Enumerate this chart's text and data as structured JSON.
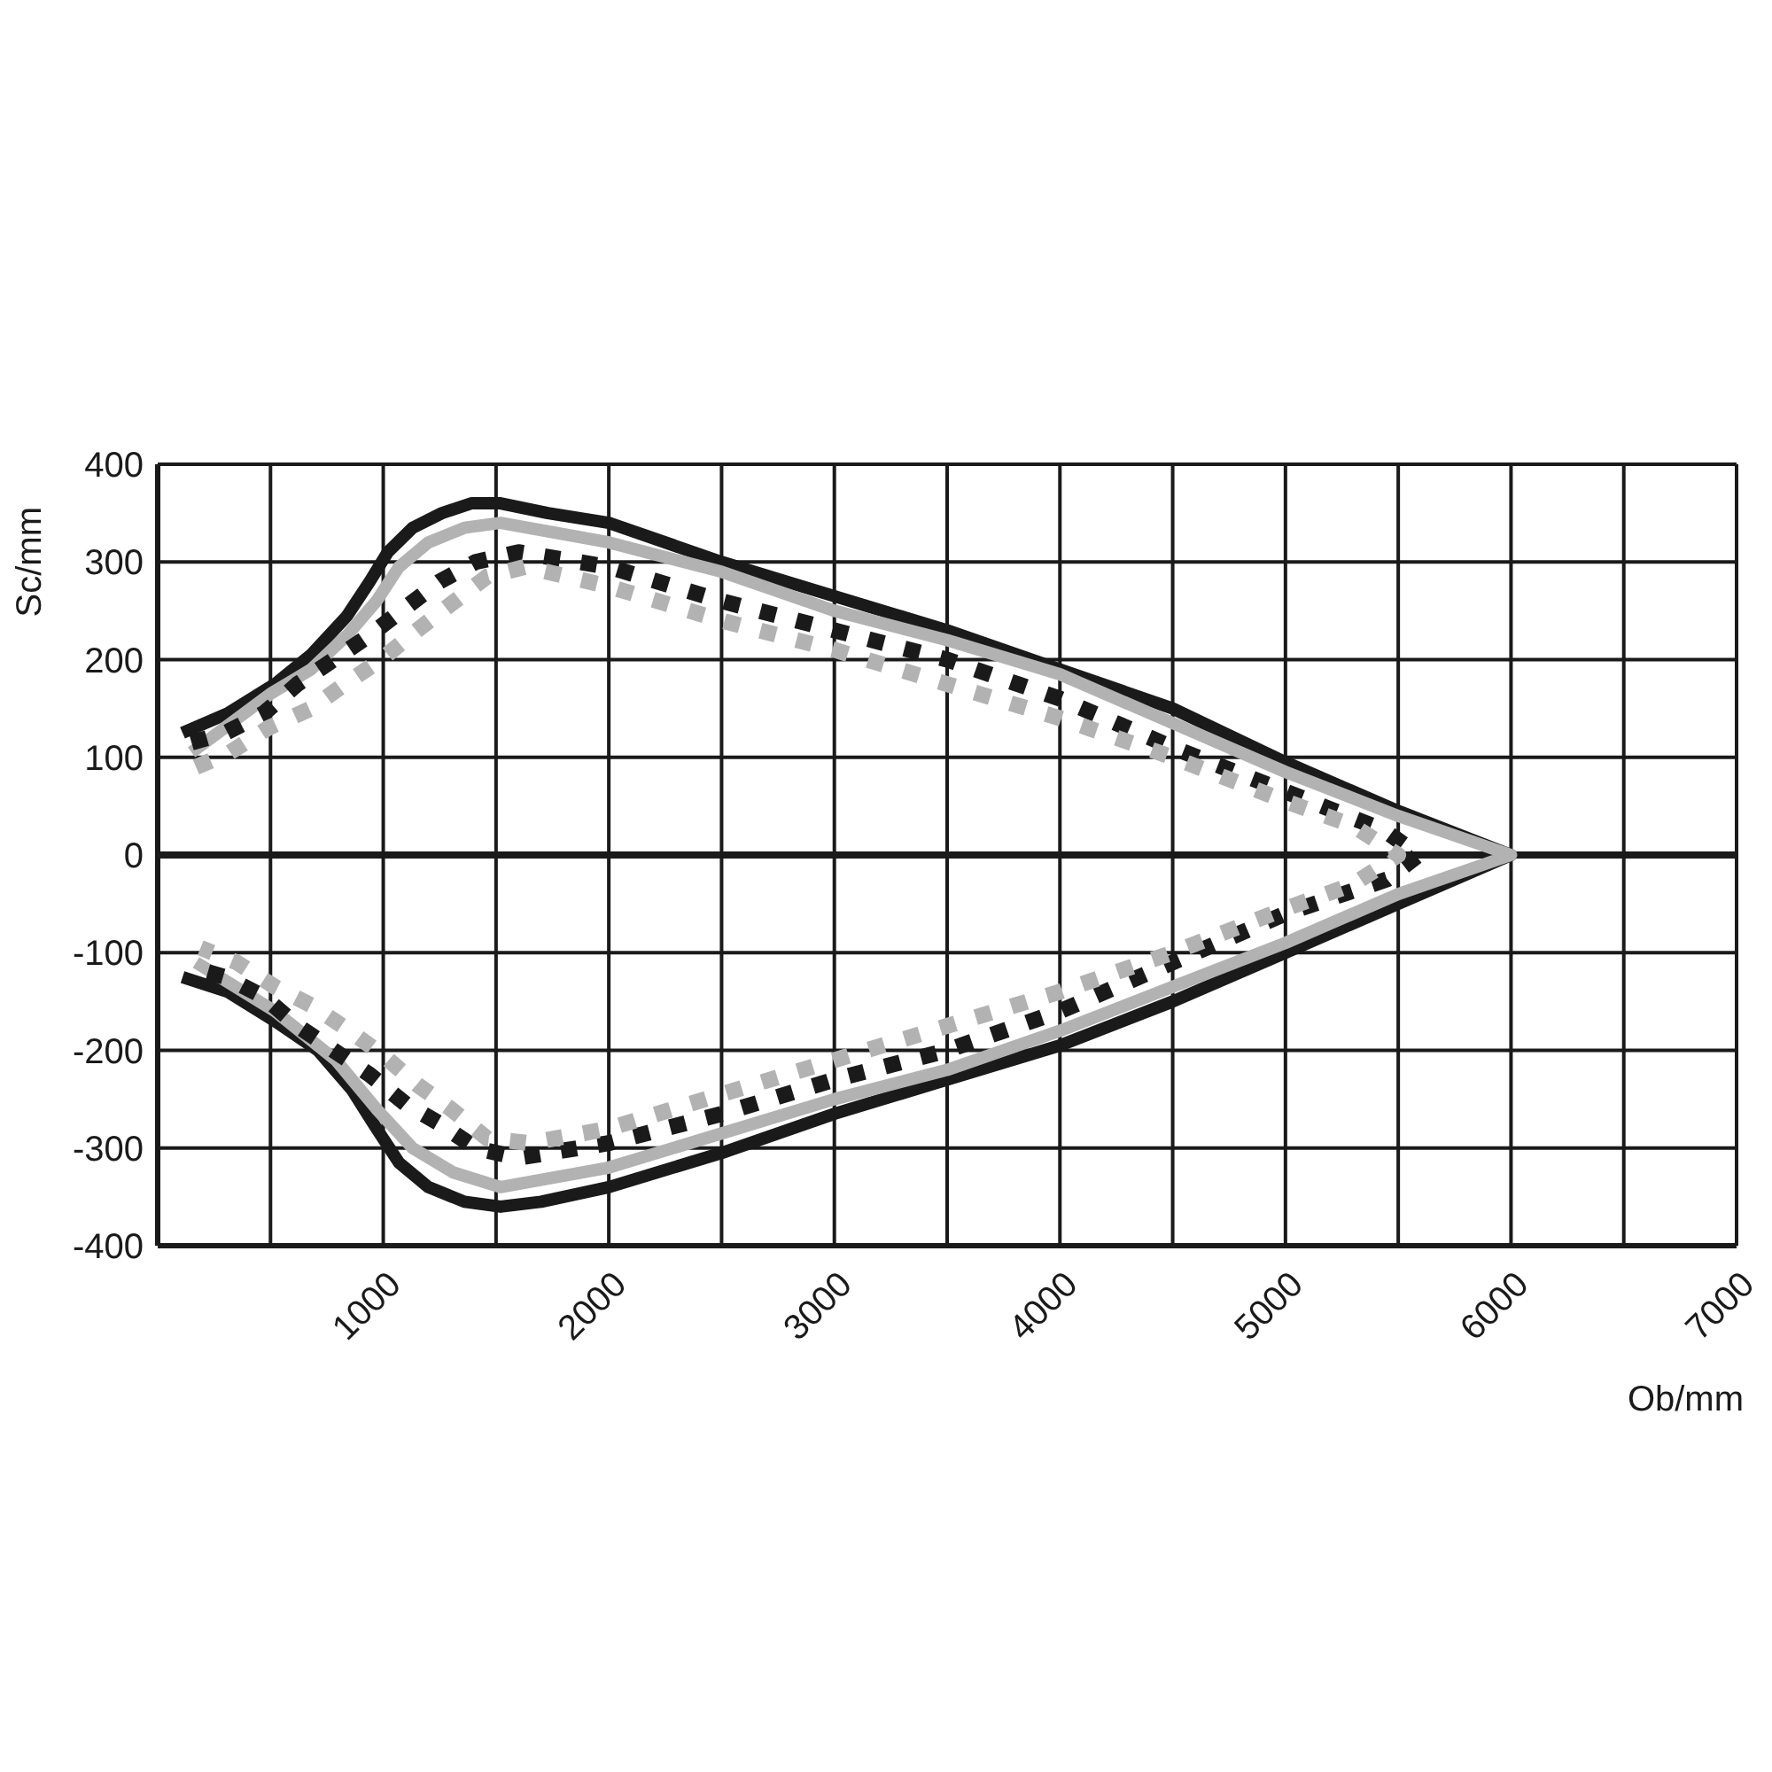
{
  "chart_data": {
    "type": "line",
    "xlabel": "Ob/mm",
    "ylabel": "Sc/mm",
    "xlim": [
      0,
      7000
    ],
    "xticks": [
      {
        "value": 0,
        "label": null
      },
      {
        "value": 500,
        "label": null
      },
      1000,
      {
        "value": 1500,
        "label": null
      },
      2000,
      {
        "value": 2500,
        "label": null
      },
      3000,
      {
        "value": 3500,
        "label": null
      },
      4000,
      {
        "value": 4500,
        "label": null
      },
      5000,
      {
        "value": 5500,
        "label": null
      },
      6000,
      {
        "value": 6500,
        "label": null
      },
      7000
    ],
    "ylim": [
      -400,
      400
    ],
    "yticks": [
      -400,
      -300,
      -200,
      -100,
      0,
      100,
      200,
      300,
      400
    ],
    "grid": true,
    "marker": "none",
    "ref_lines": [
      {
        "axis": "y",
        "value": 0,
        "color": "#1a1a1a"
      }
    ],
    "series": [
      {
        "color": "#1a1a1a",
        "line_style": "solid",
        "x": [
          110,
          310,
          520,
          680,
          840,
          940,
          1020,
          1130,
          1260,
          1390,
          1520,
          1730,
          2000,
          2500,
          3000,
          3500,
          4000,
          4500,
          5000,
          5500,
          6000,
          5500,
          5000,
          4500,
          4000,
          3500,
          3000,
          2500,
          2000,
          1700,
          1520,
          1360,
          1200,
          1070,
          970,
          860,
          710,
          520,
          310,
          110
        ],
        "values": [
          125,
          145,
          175,
          205,
          245,
          280,
          310,
          335,
          350,
          360,
          360,
          350,
          340,
          300,
          265,
          230,
          190,
          150,
          95,
          45,
          0,
          -50,
          -100,
          -150,
          -195,
          -230,
          -265,
          -305,
          -340,
          -355,
          -360,
          -355,
          -340,
          -315,
          -280,
          -240,
          -200,
          -170,
          -140,
          -125
        ]
      },
      {
        "color": "#b2b2b2",
        "line_style": "solid",
        "x": [
          150,
          500,
          680,
          840,
          970,
          1070,
          1200,
          1360,
          1520,
          2000,
          2500,
          3000,
          3500,
          4000,
          4500,
          5000,
          5500,
          6000,
          5500,
          5000,
          4500,
          4000,
          3500,
          3000,
          2500,
          2000,
          1520,
          1310,
          1130,
          970,
          790,
          520,
          170
        ],
        "values": [
          105,
          165,
          190,
          225,
          260,
          295,
          320,
          335,
          340,
          320,
          290,
          250,
          220,
          185,
          135,
          85,
          40,
          0,
          -40,
          -90,
          -135,
          -180,
          -220,
          -250,
          -285,
          -320,
          -340,
          -325,
          -300,
          -260,
          -210,
          -160,
          -110
        ]
      },
      {
        "color": "#1a1a1a",
        "line_style": "dotted",
        "x": [
          150,
          300,
          470,
          620,
          780,
          940,
          1080,
          1250,
          1410,
          1600,
          2000,
          2500,
          3000,
          3500,
          4000,
          4500,
          5000,
          5440,
          5590,
          5450,
          5000,
          4500,
          4000,
          3500,
          3000,
          2500,
          2000,
          1600,
          1410,
          1250,
          1100,
          940,
          780,
          620,
          470,
          300,
          150
        ],
        "values": [
          115,
          125,
          145,
          175,
          200,
          225,
          250,
          280,
          300,
          310,
          295,
          260,
          230,
          200,
          160,
          110,
          65,
          25,
          0,
          -25,
          -60,
          -110,
          -160,
          -200,
          -230,
          -265,
          -295,
          -310,
          -300,
          -275,
          -255,
          -225,
          -200,
          -175,
          -145,
          -125,
          -115
        ]
      },
      {
        "color": "#b2b2b2",
        "line_style": "dotted",
        "x": [
          170,
          320,
          490,
          680,
          830,
          990,
          1150,
          1290,
          1460,
          1630,
          2000,
          2500,
          3000,
          3500,
          4000,
          4500,
          5000,
          5300,
          5500,
          5300,
          5000,
          4500,
          4000,
          3500,
          3000,
          2500,
          2000,
          1650,
          1460,
          1300,
          1150,
          1000,
          850,
          690,
          520,
          350,
          190
        ],
        "values": [
          90,
          105,
          130,
          150,
          175,
          200,
          230,
          255,
          285,
          295,
          275,
          240,
          210,
          175,
          140,
          100,
          55,
          30,
          0,
          -30,
          -55,
          -100,
          -140,
          -175,
          -210,
          -245,
          -280,
          -295,
          -290,
          -260,
          -235,
          -205,
          -180,
          -155,
          -135,
          -110,
          -95
        ]
      }
    ]
  }
}
